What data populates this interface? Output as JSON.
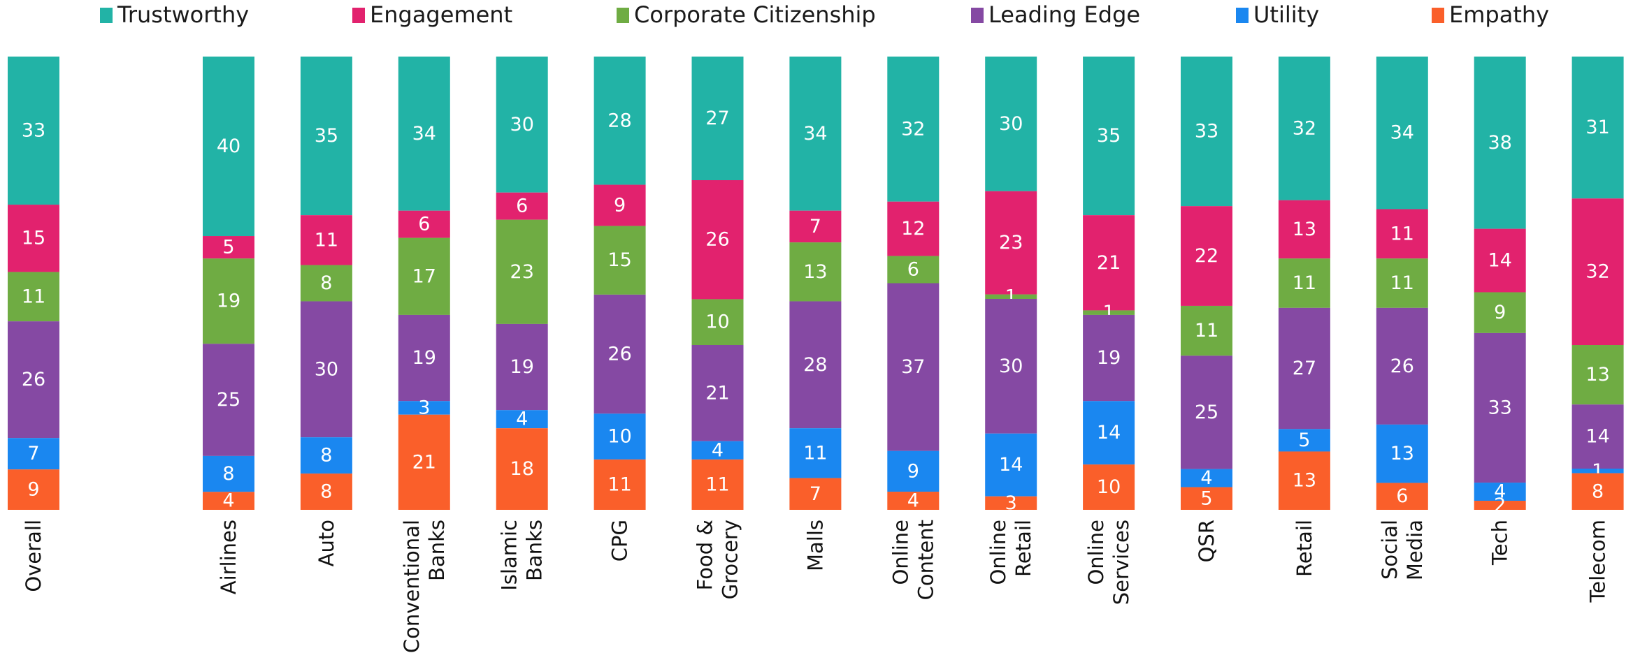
{
  "chart_data": {
    "type": "bar",
    "stacked": true,
    "normalized_percent": true,
    "legend_position": "top",
    "grid": false,
    "series": [
      {
        "name": "Trustworthy",
        "color": "#22B3A6",
        "values": [
          33,
          40,
          35,
          34,
          30,
          28,
          27,
          34,
          32,
          30,
          35,
          33,
          32,
          34,
          38,
          31
        ]
      },
      {
        "name": "Engagement",
        "color": "#E2226E",
        "values": [
          15,
          5,
          11,
          6,
          6,
          9,
          26,
          7,
          12,
          23,
          21,
          22,
          13,
          11,
          14,
          32
        ]
      },
      {
        "name": "Corporate Citizenship",
        "color": "#6FAC43",
        "values": [
          11,
          19,
          8,
          17,
          23,
          15,
          10,
          13,
          6,
          1,
          1,
          11,
          11,
          11,
          9,
          13
        ]
      },
      {
        "name": "Leading Edge",
        "color": "#8549A3",
        "values": [
          26,
          25,
          30,
          19,
          19,
          26,
          21,
          28,
          37,
          30,
          19,
          25,
          27,
          26,
          33,
          14
        ]
      },
      {
        "name": "Utility",
        "color": "#1A87F0",
        "values": [
          7,
          8,
          8,
          3,
          4,
          10,
          4,
          11,
          9,
          14,
          14,
          4,
          5,
          13,
          4,
          1
        ]
      },
      {
        "name": "Empathy",
        "color": "#FA5F2A",
        "values": [
          9,
          4,
          8,
          21,
          18,
          11,
          11,
          7,
          4,
          3,
          10,
          5,
          13,
          6,
          2,
          8
        ]
      }
    ],
    "categories": [
      [
        "Overall"
      ],
      [
        "Airlines"
      ],
      [
        "Auto"
      ],
      [
        "Conventional",
        "Banks"
      ],
      [
        "Islamic",
        "Banks"
      ],
      [
        "CPG"
      ],
      [
        "Food &",
        "Grocery"
      ],
      [
        "Malls"
      ],
      [
        "Online",
        "Content"
      ],
      [
        "Online",
        "Retail"
      ],
      [
        "Online",
        "Services"
      ],
      [
        "QSR"
      ],
      [
        "Retail"
      ],
      [
        "Social",
        "Media"
      ],
      [
        "Tech"
      ],
      [
        "Telecom"
      ]
    ]
  }
}
